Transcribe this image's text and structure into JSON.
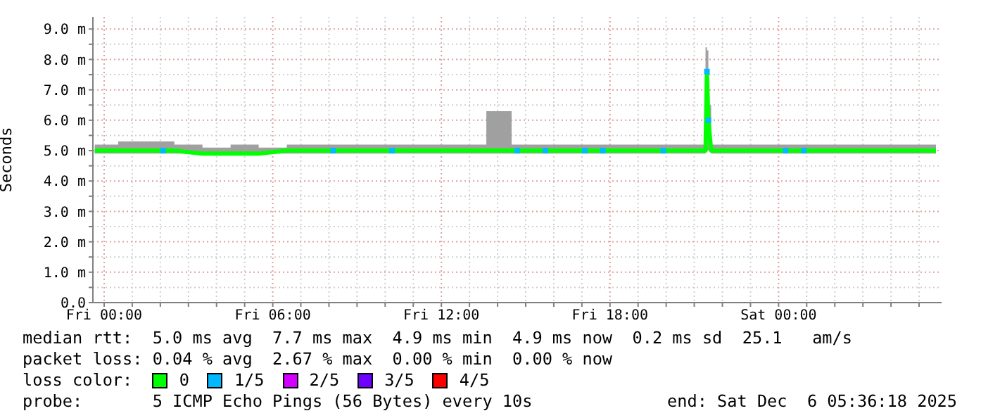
{
  "chart_data": {
    "type": "line",
    "ylabel": "Seconds",
    "legend_title": "loss color:",
    "legend": "bottom",
    "grid": true,
    "xlim": [
      "2025-12-04T23:36",
      "2025-12-06T05:48"
    ],
    "xticks": [
      {
        "value": "2025-12-05T00:00",
        "label": "Fri 00:00"
      },
      {
        "value": "2025-12-05T01:00",
        "label": null
      },
      {
        "value": "2025-12-05T02:00",
        "label": null
      },
      {
        "value": "2025-12-05T03:00",
        "label": null
      },
      {
        "value": "2025-12-05T04:00",
        "label": null
      },
      {
        "value": "2025-12-05T05:00",
        "label": null
      },
      {
        "value": "2025-12-05T06:00",
        "label": "Fri 06:00"
      },
      {
        "value": "2025-12-05T07:00",
        "label": null
      },
      {
        "value": "2025-12-05T08:00",
        "label": null
      },
      {
        "value": "2025-12-05T09:00",
        "label": null
      },
      {
        "value": "2025-12-05T10:00",
        "label": null
      },
      {
        "value": "2025-12-05T11:00",
        "label": null
      },
      {
        "value": "2025-12-05T12:00",
        "label": "Fri 12:00"
      },
      {
        "value": "2025-12-05T13:00",
        "label": null
      },
      {
        "value": "2025-12-05T14:00",
        "label": null
      },
      {
        "value": "2025-12-05T15:00",
        "label": null
      },
      {
        "value": "2025-12-05T16:00",
        "label": null
      },
      {
        "value": "2025-12-05T17:00",
        "label": null
      },
      {
        "value": "2025-12-05T18:00",
        "label": "Fri 18:00"
      },
      {
        "value": "2025-12-05T19:00",
        "label": null
      },
      {
        "value": "2025-12-05T20:00",
        "label": null
      },
      {
        "value": "2025-12-05T21:00",
        "label": null
      },
      {
        "value": "2025-12-05T22:00",
        "label": null
      },
      {
        "value": "2025-12-05T23:00",
        "label": null
      },
      {
        "value": "2025-12-06T00:00",
        "label": "Sat 00:00"
      },
      {
        "value": "2025-12-06T01:00",
        "label": null
      },
      {
        "value": "2025-12-06T02:00",
        "label": null
      },
      {
        "value": "2025-12-06T03:00",
        "label": null
      },
      {
        "value": "2025-12-06T04:00",
        "label": null
      },
      {
        "value": "2025-12-06T05:00",
        "label": null
      }
    ],
    "ylim": [
      0,
      9.4
    ],
    "yticks": [
      {
        "value": 0,
        "label": "0.0"
      },
      {
        "value": 0.5,
        "label": null
      },
      {
        "value": 1,
        "label": "1.0 m"
      },
      {
        "value": 1.5,
        "label": null
      },
      {
        "value": 2,
        "label": "2.0 m"
      },
      {
        "value": 2.5,
        "label": null
      },
      {
        "value": 3,
        "label": "3.0 m"
      },
      {
        "value": 3.5,
        "label": null
      },
      {
        "value": 4,
        "label": "4.0 m"
      },
      {
        "value": 4.5,
        "label": null
      },
      {
        "value": 5,
        "label": "5.0 m"
      },
      {
        "value": 5.5,
        "label": null
      },
      {
        "value": 6,
        "label": "6.0 m"
      },
      {
        "value": 6.5,
        "label": null
      },
      {
        "value": 7,
        "label": "7.0 m"
      },
      {
        "value": 7.5,
        "label": null
      },
      {
        "value": 8,
        "label": "8.0 m"
      },
      {
        "value": 8.5,
        "label": null
      },
      {
        "value": 9,
        "label": "9.0 m"
      }
    ],
    "series": [
      {
        "name": "0",
        "color": "#00ff00",
        "x": [
          "2025-12-04T23:40",
          "2025-12-05T00:30",
          "2025-12-05T01:30",
          "2025-12-05T02:30",
          "2025-12-05T03:30",
          "2025-12-05T04:30",
          "2025-12-05T05:30",
          "2025-12-05T06:30",
          "2025-12-05T07:30",
          "2025-12-05T08:30",
          "2025-12-05T09:30",
          "2025-12-05T10:30",
          "2025-12-05T11:30",
          "2025-12-05T12:30",
          "2025-12-05T13:36",
          "2025-12-05T14:30",
          "2025-12-05T15:30",
          "2025-12-05T16:30",
          "2025-12-05T17:30",
          "2025-12-05T18:30",
          "2025-12-05T19:30",
          "2025-12-05T20:30",
          "2025-12-05T21:18",
          "2025-12-05T21:24",
          "2025-12-05T21:27",
          "2025-12-05T21:30",
          "2025-12-05T21:36",
          "2025-12-05T22:30",
          "2025-12-05T23:30",
          "2025-12-06T00:30",
          "2025-12-06T01:30",
          "2025-12-06T02:30",
          "2025-12-06T03:30",
          "2025-12-06T04:30",
          "2025-12-06T05:36"
        ],
        "values": [
          5.0,
          5.0,
          5.0,
          5.0,
          4.9,
          4.9,
          4.9,
          5.0,
          5.0,
          5.0,
          5.0,
          5.0,
          5.0,
          5.0,
          5.0,
          5.0,
          5.0,
          5.0,
          5.0,
          5.0,
          5.0,
          5.0,
          5.0,
          5.0,
          7.6,
          6.0,
          5.0,
          5.0,
          5.0,
          5.0,
          5.0,
          5.0,
          5.0,
          5.0,
          5.0
        ],
        "lower": [
          4.9,
          4.9,
          4.9,
          4.9,
          4.9,
          4.9,
          4.9,
          4.9,
          4.9,
          4.9,
          4.9,
          4.9,
          4.9,
          4.9,
          4.9,
          4.9,
          4.9,
          4.9,
          4.9,
          4.9,
          4.9,
          4.9,
          4.9,
          5.0,
          5.0,
          5.0,
          4.9,
          4.9,
          4.9,
          4.9,
          4.9,
          4.9,
          4.9,
          4.9,
          4.9
        ],
        "upper": [
          5.2,
          5.3,
          5.3,
          5.2,
          5.1,
          5.2,
          5.1,
          5.2,
          5.2,
          5.2,
          5.2,
          5.2,
          5.2,
          5.2,
          6.3,
          5.2,
          5.2,
          5.2,
          5.2,
          5.2,
          5.2,
          5.2,
          5.2,
          8.4,
          8.3,
          6.5,
          5.2,
          5.2,
          5.2,
          5.2,
          5.2,
          5.2,
          5.2,
          5.2,
          5.2
        ]
      },
      {
        "name": "1/5",
        "type": "scatter",
        "marker": "square",
        "color": "#00b8ff",
        "x": [
          "2025-12-05T02:06",
          "2025-12-05T08:09",
          "2025-12-05T10:15",
          "2025-12-05T14:42",
          "2025-12-05T15:42",
          "2025-12-05T17:06",
          "2025-12-05T17:45",
          "2025-12-05T19:54",
          "2025-12-05T21:27",
          "2025-12-05T21:30",
          "2025-12-06T00:15",
          "2025-12-06T00:54"
        ],
        "values": [
          5.0,
          5.0,
          5.0,
          5.0,
          5.0,
          5.0,
          5.0,
          5.0,
          7.6,
          6.0,
          5.0,
          5.0
        ]
      },
      {
        "name": "2/5",
        "type": "scatter",
        "marker": "square",
        "color": "#d400ff"
      },
      {
        "name": "3/5",
        "type": "scatter",
        "marker": "square",
        "color": "#7000ff"
      },
      {
        "name": "4/5",
        "type": "scatter",
        "marker": "square",
        "color": "#ff0000"
      }
    ],
    "annotations": [
      "median rtt:  5.0 ms avg  7.7 ms max  4.9 ms min  4.9 ms now  0.2 ms sd  25.1   am/s",
      "packet loss: 0.04 % avg  2.67 % max  0.00 % min  0.00 % now",
      "probe:       5 ICMP Echo Pings (56 Bytes) every 10s",
      "end: Sat Dec  6 05:36:18 2025"
    ]
  }
}
